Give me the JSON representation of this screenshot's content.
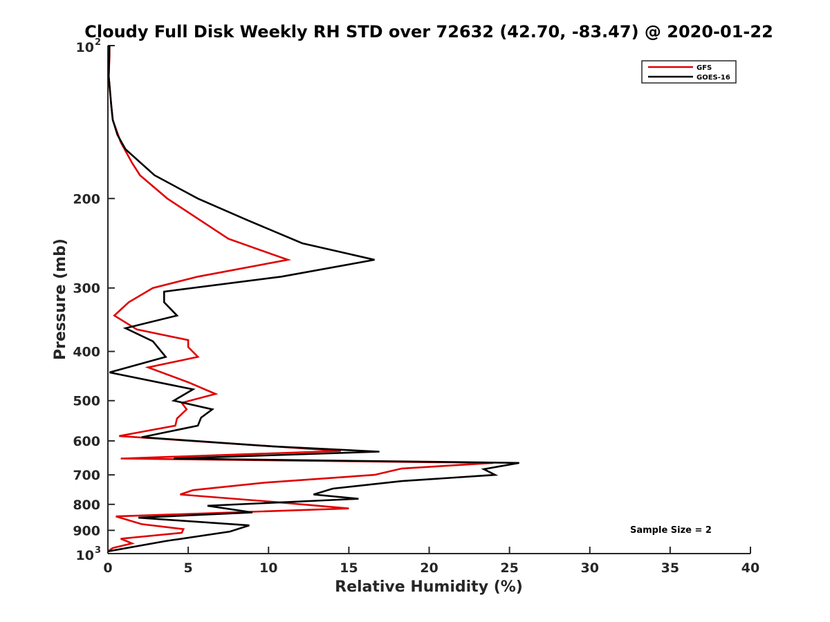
{
  "chart_data": {
    "type": "line",
    "title": "Cloudy Full Disk Weekly RH STD over 72632 (42.70, -83.47) @ 2020-01-22",
    "xlabel": "Relative Humidity (%)",
    "ylabel": "Pressure (mb)",
    "xlim": [
      0,
      40
    ],
    "ylim": [
      100,
      1000
    ],
    "yscale": "log",
    "y_reversed": true,
    "grid": false,
    "legend_position": "top-right",
    "x_ticks": [
      "0",
      "5",
      "10",
      "15",
      "20",
      "25",
      "30",
      "35",
      "40"
    ],
    "x_tick_values": [
      0,
      5,
      10,
      15,
      20,
      25,
      30,
      35,
      40
    ],
    "y_ticks": [
      {
        "value": 100,
        "base": "10",
        "exp": "2"
      },
      {
        "value": 200,
        "label": "200"
      },
      {
        "value": 300,
        "label": "300"
      },
      {
        "value": 400,
        "label": "400"
      },
      {
        "value": 500,
        "label": "500"
      },
      {
        "value": 600,
        "label": "600"
      },
      {
        "value": 700,
        "label": "700"
      },
      {
        "value": 800,
        "label": "800"
      },
      {
        "value": 900,
        "label": "900"
      },
      {
        "value": 1000,
        "base": "10",
        "exp": "3"
      }
    ],
    "annotation": "Sample Size = 2",
    "series": [
      {
        "name": "GFS",
        "color": "#e00000",
        "points": [
          [
            0.1,
            100
          ],
          [
            0.1,
            105
          ],
          [
            0.05,
            115
          ],
          [
            0.2,
            130
          ],
          [
            0.3,
            140
          ],
          [
            0.8,
            155
          ],
          [
            1.5,
            170
          ],
          [
            2.0,
            180
          ],
          [
            3.7,
            200
          ],
          [
            7.5,
            240
          ],
          [
            11.2,
            264
          ],
          [
            5.6,
            285
          ],
          [
            2.8,
            300
          ],
          [
            1.3,
            320
          ],
          [
            0.4,
            340
          ],
          [
            1.8,
            362
          ],
          [
            5.0,
            380
          ],
          [
            5.0,
            392
          ],
          [
            5.6,
            410
          ],
          [
            2.5,
            430
          ],
          [
            5.0,
            460
          ],
          [
            6.7,
            485
          ],
          [
            4.6,
            505
          ],
          [
            4.9,
            520
          ],
          [
            4.3,
            542
          ],
          [
            4.2,
            560
          ],
          [
            0.7,
            587
          ],
          [
            14.5,
            628
          ],
          [
            0.8,
            650
          ],
          [
            24.0,
            663
          ],
          [
            18.3,
            680
          ],
          [
            16.6,
            700
          ],
          [
            9.8,
            725
          ],
          [
            5.3,
            750
          ],
          [
            4.5,
            765
          ],
          [
            10.1,
            790
          ],
          [
            15.0,
            815
          ],
          [
            0.5,
            845
          ],
          [
            2.1,
            875
          ],
          [
            4.7,
            895
          ],
          [
            4.6,
            910
          ],
          [
            0.8,
            935
          ],
          [
            1.5,
            955
          ],
          [
            0.3,
            975
          ],
          [
            0.0,
            990
          ]
        ]
      },
      {
        "name": "GOES-16",
        "color": "#000000",
        "points": [
          [
            0.1,
            100
          ],
          [
            0.05,
            115
          ],
          [
            0.2,
            130
          ],
          [
            0.3,
            140
          ],
          [
            0.6,
            150
          ],
          [
            1.1,
            160
          ],
          [
            2.9,
            180
          ],
          [
            5.6,
            200
          ],
          [
            8.6,
            220
          ],
          [
            12.1,
            245
          ],
          [
            16.6,
            264
          ],
          [
            10.8,
            285
          ],
          [
            3.5,
            305
          ],
          [
            3.5,
            320
          ],
          [
            4.3,
            340
          ],
          [
            1.1,
            360
          ],
          [
            2.8,
            382
          ],
          [
            3.6,
            410
          ],
          [
            0.1,
            440
          ],
          [
            5.3,
            475
          ],
          [
            4.1,
            500
          ],
          [
            6.5,
            520
          ],
          [
            5.8,
            540
          ],
          [
            5.6,
            560
          ],
          [
            2.1,
            590
          ],
          [
            10.2,
            615
          ],
          [
            16.9,
            630
          ],
          [
            4.1,
            650
          ],
          [
            25.6,
            663
          ],
          [
            23.4,
            682
          ],
          [
            24.1,
            700
          ],
          [
            18.3,
            720
          ],
          [
            14.0,
            745
          ],
          [
            12.8,
            765
          ],
          [
            15.6,
            780
          ],
          [
            6.2,
            805
          ],
          [
            9.0,
            830
          ],
          [
            1.9,
            850
          ],
          [
            8.8,
            880
          ],
          [
            7.6,
            905
          ],
          [
            3.6,
            945
          ],
          [
            0.0,
            990
          ]
        ]
      }
    ]
  }
}
